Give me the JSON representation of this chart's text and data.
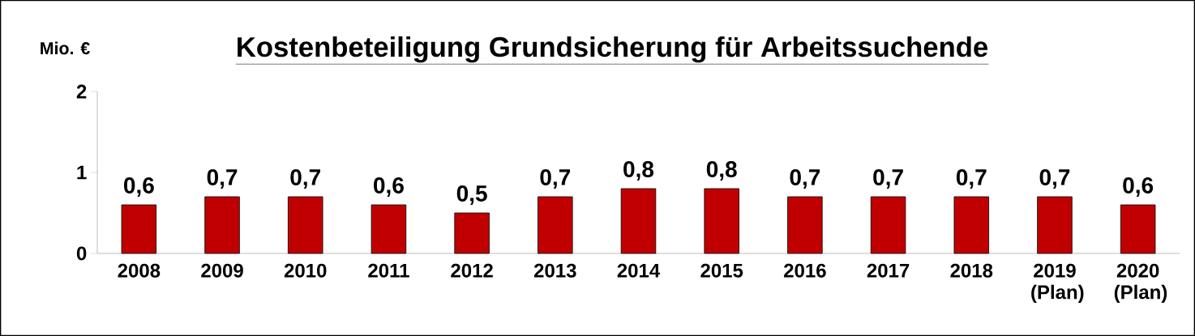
{
  "chart_data": {
    "type": "bar",
    "title": "Kostenbeteiligung Grundsicherung für Arbeitssuchende",
    "ylabel": "Mio. €",
    "categories": [
      "2008",
      "2009",
      "2010",
      "2011",
      "2012",
      "2013",
      "2014",
      "2015",
      "2016",
      "2017",
      "2018",
      "2019 (Plan)",
      "2020 (Plan)"
    ],
    "values": [
      0.6,
      0.7,
      0.7,
      0.6,
      0.5,
      0.7,
      0.8,
      0.8,
      0.7,
      0.7,
      0.7,
      0.7,
      0.6
    ],
    "value_labels": [
      "0,6",
      "0,7",
      "0,7",
      "0,6",
      "0,5",
      "0,7",
      "0,8",
      "0,8",
      "0,7",
      "0,7",
      "0,7",
      "0,7",
      "0,6"
    ],
    "color": "#c00000",
    "ylim": [
      0,
      2
    ],
    "yticks": [
      0,
      1,
      2
    ]
  }
}
